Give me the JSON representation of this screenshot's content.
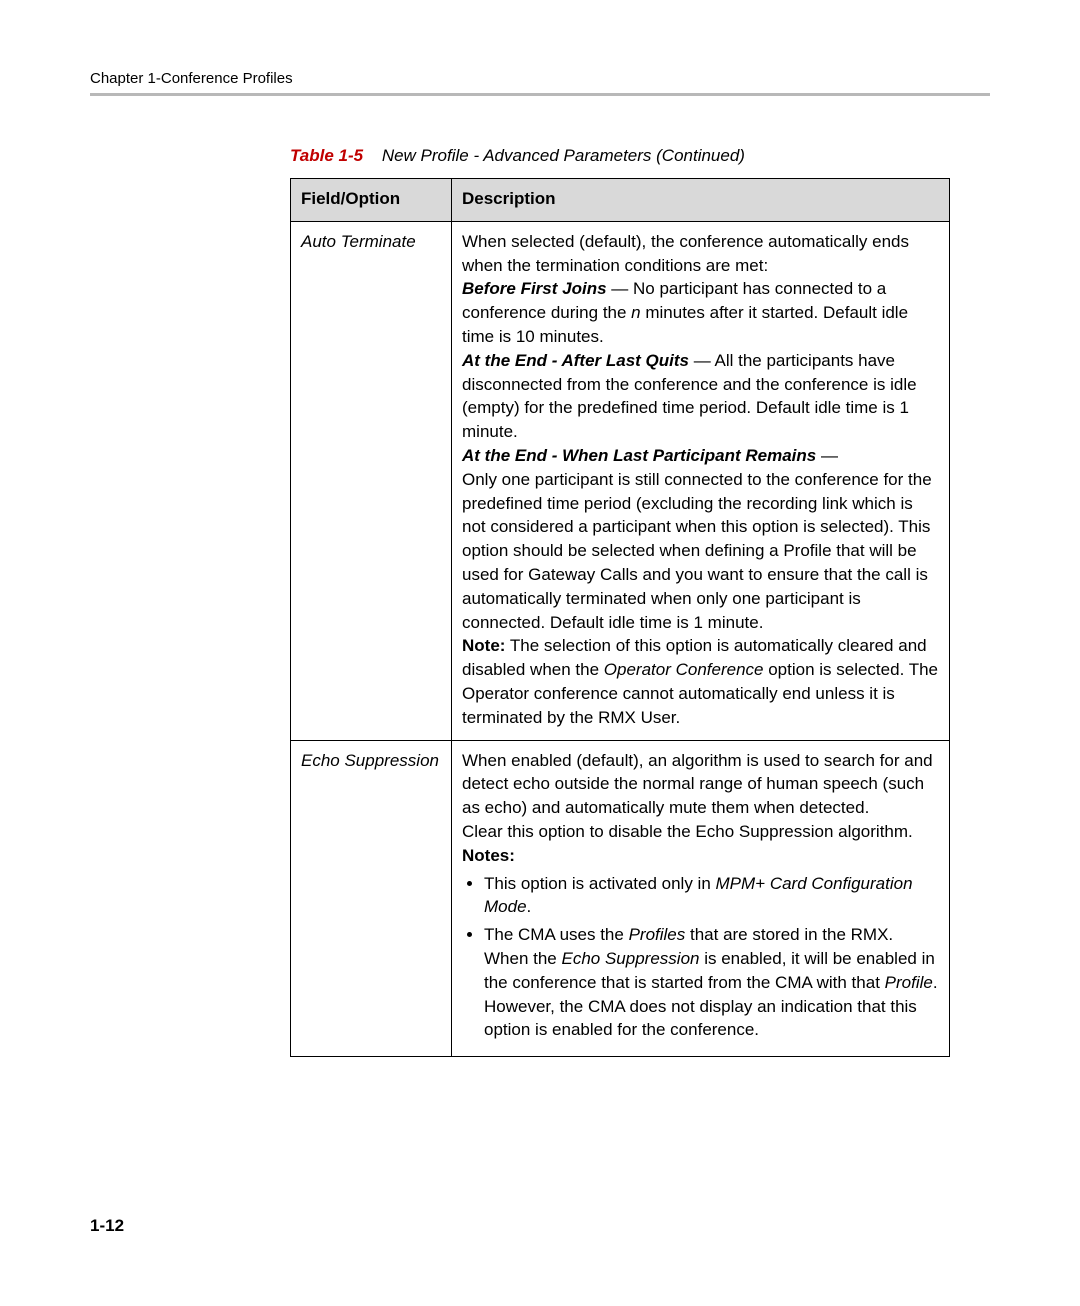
{
  "header": {
    "chapter": "Chapter 1-Conference Profiles"
  },
  "caption": {
    "label": "Table 1-5",
    "title": "New Profile - Advanced Parameters (Continued)"
  },
  "table": {
    "columns": {
      "field": "Field/Option",
      "desc": "Description"
    },
    "rows": {
      "auto_terminate": {
        "field": "Auto Terminate",
        "p1": "When selected (default), the conference automatically ends when the termination conditions are met:",
        "bfj_label": "Before First Joins",
        "bfj_text": " — No participant has connected to a conference during the ",
        "bfj_n": "n",
        "bfj_text2": " minutes after it started. Default idle time is 10 minutes.",
        "alq_label": "At the End - After Last Quits",
        "alq_text": " — All the participants have disconnected from the conference and the conference is idle (empty) for the predefined time period. Default idle time is 1 minute.",
        "wlp_label": "At the End - When Last Participant Remains",
        "wlp_dash": " —",
        "wlp_text": "Only one participant is still connected to the conference for the predefined time period (excluding the recording link which is not considered a participant when this option is selected). This option should be selected when defining a Profile that will be used for Gateway Calls and you want to ensure that the call is automatically terminated when only one participant is connected. Default idle time is 1 minute.",
        "note_label": "Note:",
        "note_text1": " The selection of this option is automatically cleared and disabled when the ",
        "note_em": "Operator Conference",
        "note_text2": " option is selected. The Operator conference cannot automatically end unless it is terminated by the RMX User."
      },
      "echo": {
        "field": "Echo Suppression",
        "p1": "When enabled (default), an algorithm is used to search for and detect echo outside the normal range of human speech (such as echo) and automatically mute them when detected.",
        "p2": "Clear this option to disable the Echo Suppression algorithm.",
        "notes_label": "Notes:",
        "note1_a": "This option is activated only in ",
        "note1_em": "MPM+ Card Configuration Mode",
        "note1_b": ".",
        "note2_a": "The CMA uses the ",
        "note2_em1": "Profiles",
        "note2_b": " that are stored in the RMX. When the ",
        "note2_em2": "Echo Suppression",
        "note2_c": " is enabled, it will be enabled in the conference that is started from the CMA with that ",
        "note2_em3": "Profile",
        "note2_d": ". However, the CMA does not display an indication that this option is enabled for the conference."
      }
    }
  },
  "page_number": "1-12",
  "colors": {
    "header_rule": "#b8b8b8",
    "table_label": "#c00000",
    "th_bg": "#d9d9d9"
  }
}
